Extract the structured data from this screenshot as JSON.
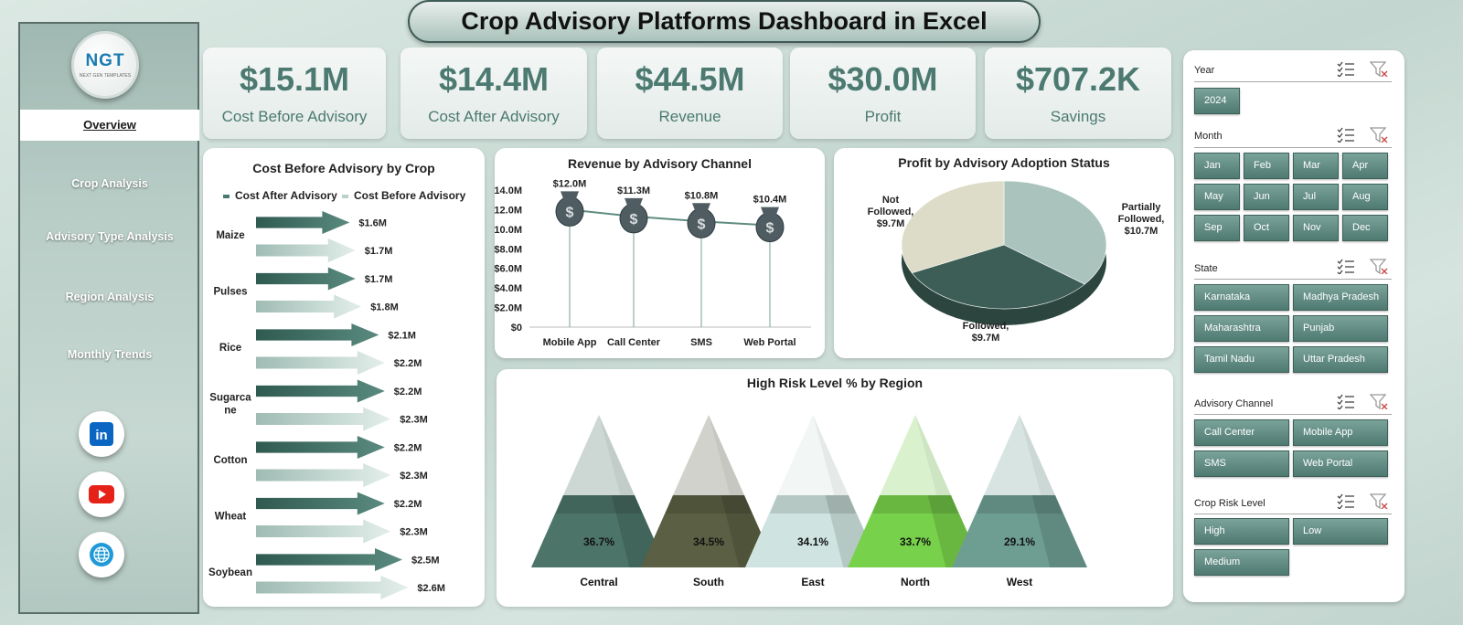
{
  "title": "Crop Advisory Platforms Dashboard in Excel",
  "logo": {
    "text": "NGT",
    "sub": "NEXT GEN TEMPLATES"
  },
  "nav": [
    "Overview",
    "Crop Analysis",
    "Advisory Type Analysis",
    "Region Analysis",
    "Monthly Trends"
  ],
  "social": [
    "linkedin-icon",
    "youtube-icon",
    "globe-icon"
  ],
  "kpis": [
    {
      "value": "$15.1M",
      "label": "Cost Before Advisory"
    },
    {
      "value": "$14.4M",
      "label": "Cost After Advisory"
    },
    {
      "value": "$44.5M",
      "label": "Revenue"
    },
    {
      "value": "$30.0M",
      "label": "Profit"
    },
    {
      "value": "$707.2K",
      "label": "Savings"
    }
  ],
  "slicers": {
    "year": {
      "title": "Year",
      "items": [
        "2024"
      ]
    },
    "month": {
      "title": "Month",
      "items": [
        "Jan",
        "Feb",
        "Mar",
        "Apr",
        "May",
        "Jun",
        "Jul",
        "Aug",
        "Sep",
        "Oct",
        "Nov",
        "Dec"
      ]
    },
    "state": {
      "title": "State",
      "items": [
        "Karnataka",
        "Madhya Pradesh",
        "Maharashtra",
        "Punjab",
        "Tamil Nadu",
        "Uttar Pradesh"
      ]
    },
    "channel": {
      "title": "Advisory Channel",
      "items": [
        "Call Center",
        "Mobile App",
        "SMS",
        "Web Portal"
      ]
    },
    "risk": {
      "title": "Crop Risk Level",
      "items": [
        "High",
        "Low",
        "Medium"
      ]
    }
  },
  "chart_data": [
    {
      "type": "bar",
      "title": "Cost Before Advisory by Crop",
      "categories": [
        "Maize",
        "Pulses",
        "Rice",
        "Sugarcane",
        "Cotton",
        "Wheat",
        "Soybean"
      ],
      "category_labels": [
        "Maize",
        "Pulses",
        "Rice",
        "Sugarca\nne",
        "Cotton",
        "Wheat",
        "Soybean"
      ],
      "series": [
        {
          "name": "Cost After Advisory",
          "values": [
            1.6,
            1.7,
            2.1,
            2.2,
            2.2,
            2.2,
            2.5
          ],
          "labels": [
            "$1.6M",
            "$1.7M",
            "$2.1M",
            "$2.2M",
            "$2.2M",
            "$2.2M",
            "$2.5M"
          ],
          "color": "#4a7a6f"
        },
        {
          "name": "Cost Before Advisory",
          "values": [
            1.7,
            1.8,
            2.2,
            2.3,
            2.3,
            2.3,
            2.6
          ],
          "labels": [
            "$1.7M",
            "$1.8M",
            "$2.2M",
            "$2.3M",
            "$2.3M",
            "$2.3M",
            "$2.6M"
          ],
          "color": "#b9d1c9"
        }
      ],
      "legend": "top",
      "units": "$M"
    },
    {
      "type": "line",
      "title": "Revenue by Advisory Channel",
      "categories": [
        "Mobile App",
        "Call Center",
        "SMS",
        "Web Portal"
      ],
      "values": [
        12.0,
        11.3,
        10.8,
        10.4
      ],
      "labels": [
        "$12.0M",
        "$11.3M",
        "$10.8M",
        "$10.4M"
      ],
      "yticks": [
        "$0",
        "$2.0M",
        "$4.0M",
        "$6.0M",
        "$8.0M",
        "$10.0M",
        "$12.0M",
        "$14.0M"
      ],
      "ylim": [
        0,
        14
      ]
    },
    {
      "type": "pie",
      "title": "Profit by Advisory Adoption Status",
      "labels": [
        "Partially Followed",
        "Followed",
        "Not Followed"
      ],
      "label_lines": [
        [
          "Partially",
          "Followed,",
          "$10.7M"
        ],
        [
          "Followed,",
          "$9.7M"
        ],
        [
          "Not",
          "Followed,",
          "$9.7M"
        ]
      ],
      "values": [
        10.7,
        9.7,
        9.7
      ],
      "colors": [
        "#aac4bd",
        "#3d5e56",
        "#dcdcc8"
      ]
    },
    {
      "type": "bar",
      "title": "High Risk Level % by Region",
      "categories": [
        "Central",
        "South",
        "East",
        "North",
        "West"
      ],
      "values": [
        36.7,
        34.5,
        34.1,
        33.7,
        29.1
      ],
      "labels": [
        "36.7%",
        "34.5%",
        "34.1%",
        "33.7%",
        "29.1%"
      ],
      "colors": [
        "#4c7468",
        "#5b5f43",
        "#cfe4e0",
        "#78d14a",
        "#6e9e92"
      ]
    }
  ]
}
